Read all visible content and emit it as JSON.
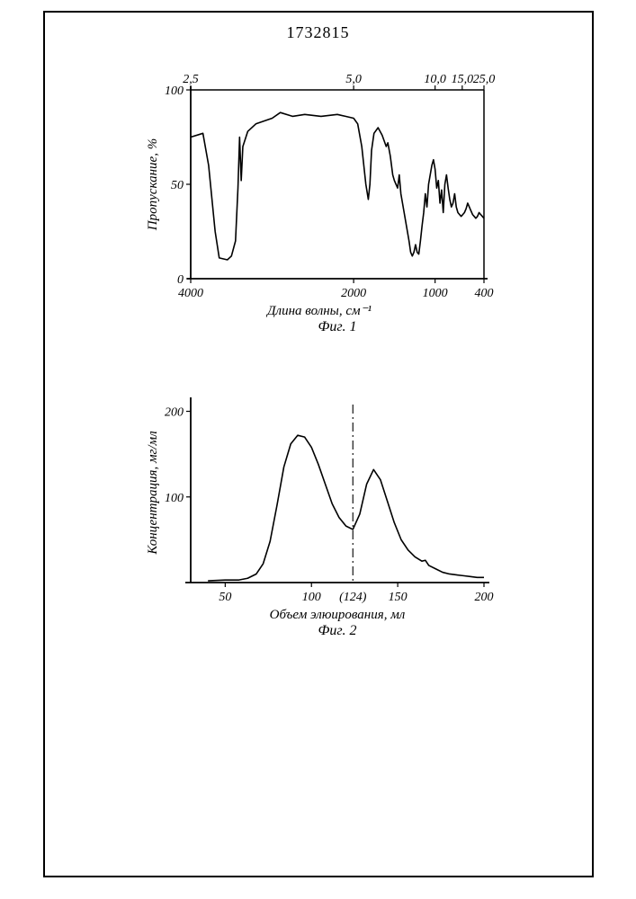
{
  "doc_number": "1732815",
  "fig1": {
    "type": "line",
    "caption": "Фиг. 1",
    "title_fontsize": 16,
    "xlabel": "Длина волны, см⁻¹",
    "ylabel": "Пропускание, %",
    "label_fontsize": 15,
    "tick_fontsize": 14,
    "top_ticks": [
      "2,5",
      "5,0",
      "10,0",
      "15,0",
      "25,0"
    ],
    "top_tick_x": [
      4000,
      2000,
      1000,
      667,
      400
    ],
    "x_ticks": [
      4000,
      2000,
      1000,
      400
    ],
    "y_ticks": [
      0,
      50,
      100
    ],
    "xlim": [
      4000,
      400
    ],
    "ylim": [
      0,
      100
    ],
    "line_color": "#000000",
    "line_width": 1.6,
    "axis_color": "#000000",
    "background_color": "#ffffff",
    "series": [
      [
        4000,
        75
      ],
      [
        3850,
        77
      ],
      [
        3780,
        60
      ],
      [
        3700,
        25
      ],
      [
        3650,
        11
      ],
      [
        3550,
        10
      ],
      [
        3500,
        12
      ],
      [
        3450,
        20
      ],
      [
        3420,
        48
      ],
      [
        3400,
        75
      ],
      [
        3380,
        52
      ],
      [
        3360,
        70
      ],
      [
        3300,
        78
      ],
      [
        3200,
        82
      ],
      [
        3000,
        85
      ],
      [
        2900,
        88
      ],
      [
        2750,
        86
      ],
      [
        2600,
        87
      ],
      [
        2400,
        86
      ],
      [
        2200,
        87
      ],
      [
        2100,
        86
      ],
      [
        2000,
        85
      ],
      [
        1950,
        82
      ],
      [
        1900,
        70
      ],
      [
        1850,
        50
      ],
      [
        1820,
        42
      ],
      [
        1800,
        50
      ],
      [
        1780,
        68
      ],
      [
        1750,
        77
      ],
      [
        1700,
        80
      ],
      [
        1650,
        76
      ],
      [
        1600,
        70
      ],
      [
        1580,
        72
      ],
      [
        1550,
        65
      ],
      [
        1520,
        55
      ],
      [
        1500,
        52
      ],
      [
        1480,
        50
      ],
      [
        1460,
        48
      ],
      [
        1440,
        55
      ],
      [
        1420,
        45
      ],
      [
        1400,
        40
      ],
      [
        1380,
        35
      ],
      [
        1360,
        30
      ],
      [
        1340,
        25
      ],
      [
        1320,
        20
      ],
      [
        1300,
        14
      ],
      [
        1280,
        12
      ],
      [
        1260,
        14
      ],
      [
        1240,
        18
      ],
      [
        1220,
        14
      ],
      [
        1200,
        13
      ],
      [
        1180,
        20
      ],
      [
        1160,
        28
      ],
      [
        1140,
        35
      ],
      [
        1120,
        45
      ],
      [
        1100,
        38
      ],
      [
        1080,
        50
      ],
      [
        1060,
        55
      ],
      [
        1040,
        60
      ],
      [
        1020,
        63
      ],
      [
        1000,
        58
      ],
      [
        980,
        48
      ],
      [
        960,
        52
      ],
      [
        940,
        40
      ],
      [
        920,
        47
      ],
      [
        900,
        35
      ],
      [
        880,
        50
      ],
      [
        860,
        55
      ],
      [
        840,
        48
      ],
      [
        820,
        42
      ],
      [
        800,
        38
      ],
      [
        780,
        40
      ],
      [
        760,
        45
      ],
      [
        740,
        38
      ],
      [
        720,
        35
      ],
      [
        700,
        34
      ],
      [
        680,
        33
      ],
      [
        660,
        34
      ],
      [
        640,
        35
      ],
      [
        620,
        37
      ],
      [
        600,
        40
      ],
      [
        580,
        38
      ],
      [
        560,
        36
      ],
      [
        540,
        34
      ],
      [
        520,
        33
      ],
      [
        500,
        32
      ],
      [
        480,
        33
      ],
      [
        460,
        35
      ],
      [
        440,
        34
      ],
      [
        420,
        33
      ],
      [
        400,
        32
      ]
    ]
  },
  "fig2": {
    "type": "line",
    "caption": "Фиг. 2",
    "title_fontsize": 16,
    "xlabel": "Объем элюирования, мл",
    "ylabel": "Концентрация, мг/мл",
    "label_fontsize": 15,
    "tick_fontsize": 14,
    "x_ticks": [
      50,
      100,
      150,
      200
    ],
    "x_tick_extra": "(124)",
    "x_tick_extra_pos": 124,
    "y_ticks": [
      100,
      200
    ],
    "xlim": [
      30,
      200
    ],
    "ylim": [
      0,
      210
    ],
    "marker_x": 124,
    "line_color": "#000000",
    "line_width": 1.6,
    "axis_color": "#000000",
    "background_color": "#ffffff",
    "series": [
      [
        40,
        2
      ],
      [
        50,
        3
      ],
      [
        58,
        3
      ],
      [
        63,
        5
      ],
      [
        68,
        10
      ],
      [
        72,
        22
      ],
      [
        76,
        48
      ],
      [
        80,
        90
      ],
      [
        84,
        135
      ],
      [
        88,
        162
      ],
      [
        92,
        172
      ],
      [
        96,
        170
      ],
      [
        100,
        158
      ],
      [
        104,
        138
      ],
      [
        108,
        115
      ],
      [
        112,
        92
      ],
      [
        116,
        76
      ],
      [
        120,
        66
      ],
      [
        124,
        62
      ],
      [
        128,
        80
      ],
      [
        132,
        115
      ],
      [
        136,
        132
      ],
      [
        140,
        120
      ],
      [
        144,
        95
      ],
      [
        148,
        70
      ],
      [
        152,
        50
      ],
      [
        156,
        38
      ],
      [
        160,
        30
      ],
      [
        164,
        25
      ],
      [
        166,
        26
      ],
      [
        168,
        20
      ],
      [
        172,
        16
      ],
      [
        176,
        12
      ],
      [
        180,
        10
      ],
      [
        184,
        9
      ],
      [
        188,
        8
      ],
      [
        192,
        7
      ],
      [
        196,
        6
      ],
      [
        200,
        6
      ]
    ]
  }
}
